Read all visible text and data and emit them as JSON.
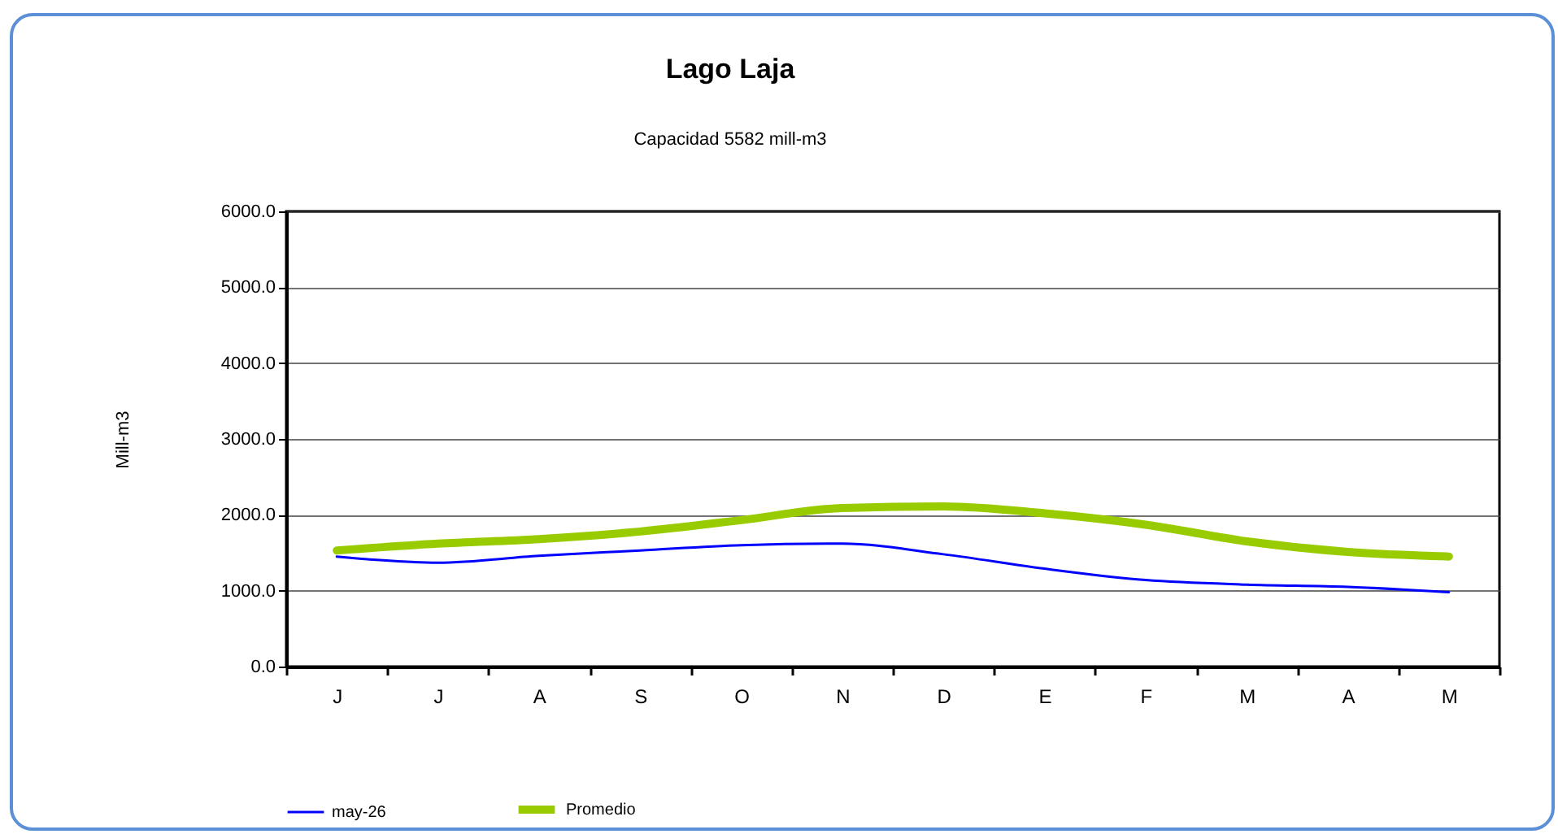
{
  "chart_data": {
    "type": "line",
    "title": "Lago Laja",
    "subtitle": "Capacidad  5582 mill-m3",
    "ylabel": "Mill-m3",
    "categories": [
      "J",
      "J",
      "A",
      "S",
      "O",
      "N",
      "D",
      "E",
      "F",
      "M",
      "A",
      "M"
    ],
    "series": [
      {
        "name": "may-26",
        "color": "#0000ff",
        "values": [
          1450,
          1370,
          1460,
          1530,
          1600,
          1620,
          1480,
          1290,
          1140,
          1080,
          1050,
          980
        ]
      },
      {
        "name": "Promedio",
        "color": "#99cc00",
        "values": [
          1530,
          1620,
          1680,
          1780,
          1930,
          2090,
          2110,
          2020,
          1870,
          1650,
          1510,
          1450
        ]
      }
    ],
    "ylim": [
      0,
      6000
    ],
    "yticks": [
      {
        "value": 0,
        "label": "0.0"
      },
      {
        "value": 1000,
        "label": "1000.0"
      },
      {
        "value": 2000,
        "label": "2000.0"
      },
      {
        "value": 3000,
        "label": "3000.0"
      },
      {
        "value": 4000,
        "label": "4000.0"
      },
      {
        "value": 5000,
        "label": "5000.0"
      },
      {
        "value": 6000,
        "label": "6000.0"
      }
    ],
    "grid": "y",
    "legend": "bottom",
    "marker": "none",
    "line_style": "solid"
  }
}
